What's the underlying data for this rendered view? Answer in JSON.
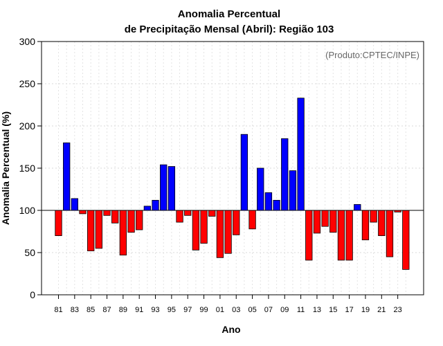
{
  "chart_data": {
    "type": "bar",
    "title_line1": "Anomalia Percentual",
    "title_line2": "de Precipitação Mensal (Abril): Região 103",
    "xlabel": "Ano",
    "ylabel": "Anomalia Percentual (%)",
    "note": "(Produto:CPTEC/INPE)",
    "ylim": [
      0,
      300
    ],
    "yticks": [
      "0",
      "50",
      "100",
      "150",
      "200",
      "250",
      "300"
    ],
    "baseline": 100,
    "colors": {
      "above": "#0000ff",
      "below": "#ff0000"
    },
    "xtick_labels": [
      "81",
      "83",
      "85",
      "87",
      "89",
      "91",
      "93",
      "95",
      "97",
      "99",
      "01",
      "03",
      "05",
      "07",
      "09",
      "11",
      "13",
      "15",
      "17",
      "19",
      "21",
      "23"
    ],
    "categories": [
      "81",
      "82",
      "83",
      "84",
      "85",
      "86",
      "87",
      "88",
      "89",
      "90",
      "91",
      "92",
      "93",
      "94",
      "95",
      "96",
      "97",
      "98",
      "99",
      "00",
      "01",
      "02",
      "03",
      "04",
      "05",
      "06",
      "07",
      "08",
      "09",
      "10",
      "11",
      "12",
      "13",
      "14",
      "15",
      "16",
      "17",
      "18",
      "19",
      "20",
      "21",
      "22",
      "23",
      "24"
    ],
    "values": [
      70,
      180,
      114,
      96,
      52,
      55,
      94,
      85,
      47,
      74,
      77,
      105,
      112,
      154,
      152,
      86,
      94,
      53,
      61,
      93,
      44,
      49,
      71,
      190,
      78,
      150,
      121,
      112,
      185,
      147,
      233,
      41,
      73,
      81,
      74,
      41,
      41,
      107,
      65,
      86,
      70,
      45,
      98,
      30
    ]
  }
}
